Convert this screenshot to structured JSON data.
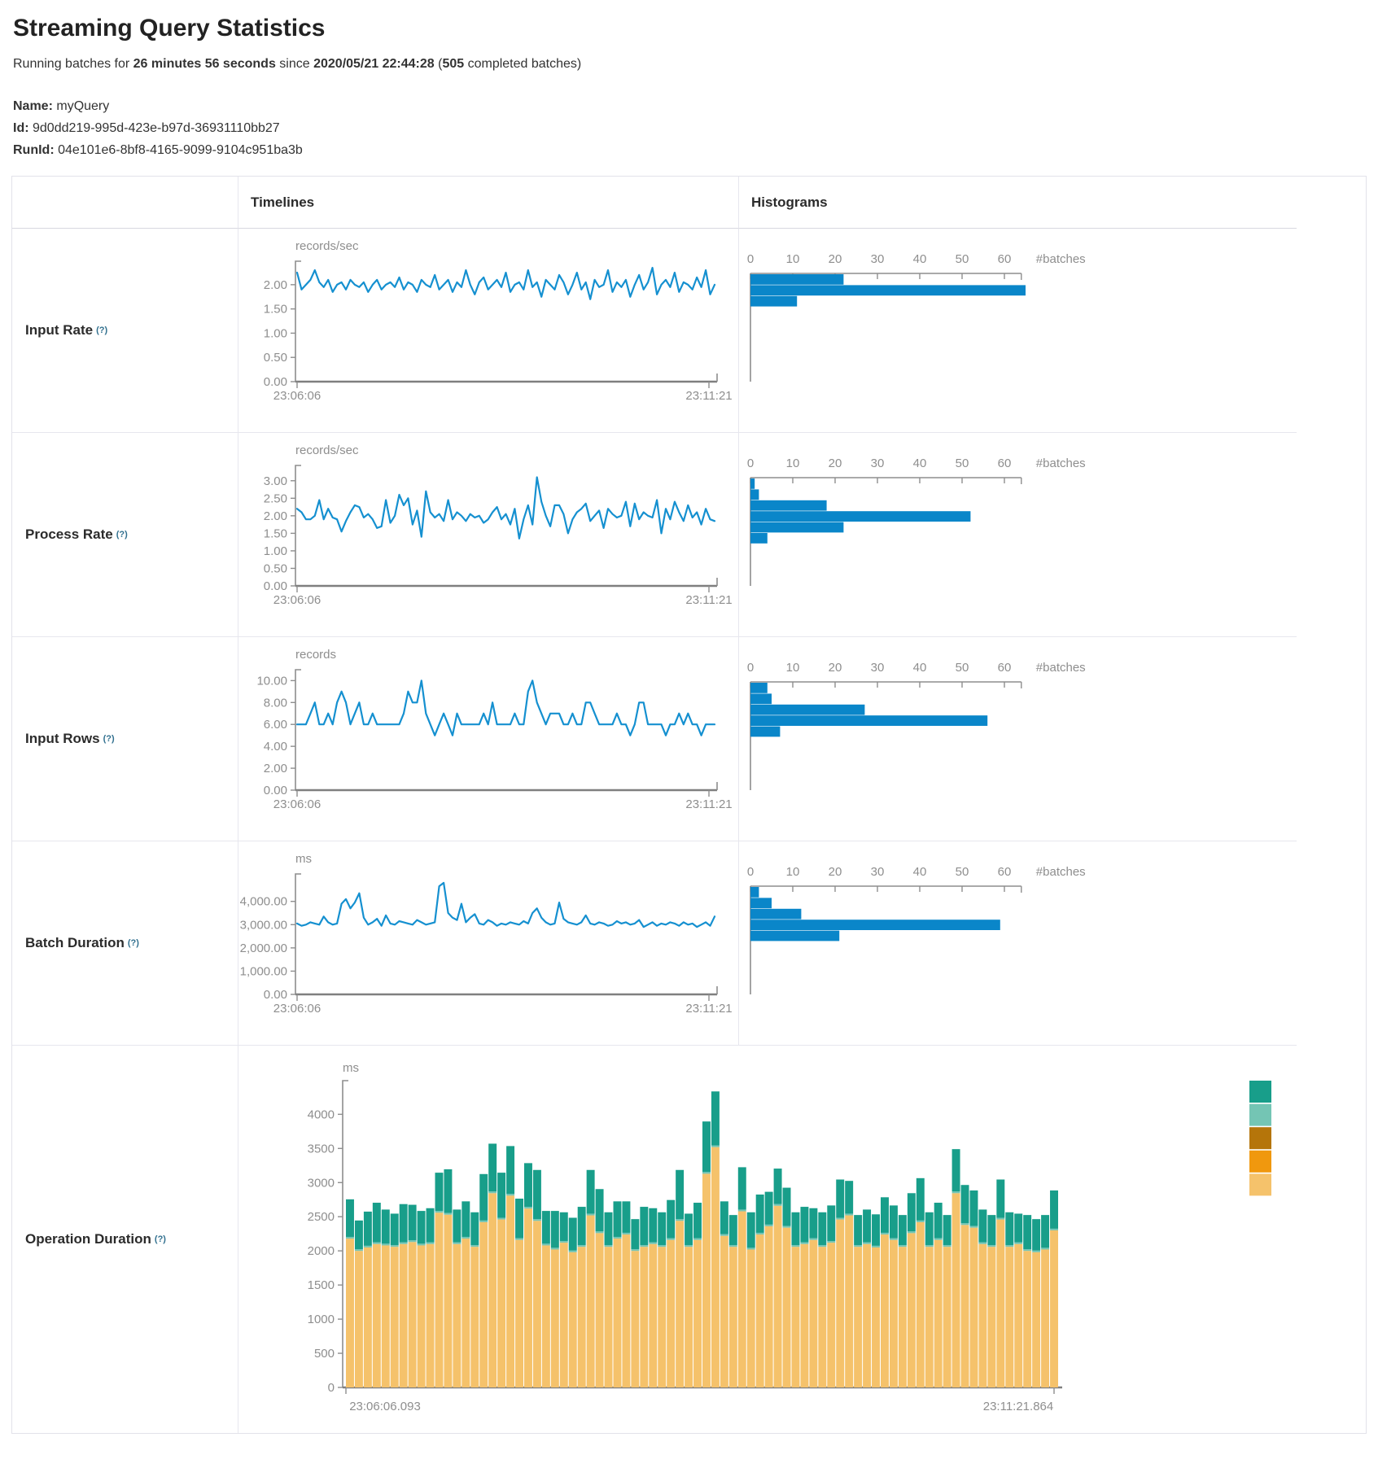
{
  "page": {
    "title": "Streaming Query Statistics",
    "subtitle": {
      "prefix": "Running batches for ",
      "duration": "26 minutes 56 seconds",
      "mid": " since ",
      "start_time": "2020/05/21 22:44:28",
      "paren_open": " (",
      "batches": "505",
      "suffix": " completed batches)"
    },
    "meta": [
      {
        "label": "Name:",
        "value": "myQuery"
      },
      {
        "label": "Id:",
        "value": "9d0dd219-995d-423e-b97d-36931110bb27"
      },
      {
        "label": "RunId:",
        "value": "04e101e6-8bf8-4165-9099-9104c951ba3b"
      }
    ]
  },
  "table": {
    "headers": {
      "timelines": "Timelines",
      "histograms": "Histograms"
    }
  },
  "colors": {
    "line_blue": "#1590d0",
    "hist_blue": "#0a86c9",
    "axis_gray": "#8e8e8e",
    "baseline_gray": "#7f7f7f",
    "stack_tan": "#F5C26B",
    "stack_mid_teal": "#74C5B4",
    "stack_green": "#189E8A",
    "legend_dark_gold": "#B5750A",
    "legend_orange": "#F0980E"
  },
  "chart_data": [
    {
      "label": "Input Rate",
      "help": "(?)",
      "timeline": {
        "type": "line",
        "unit": "records/sec",
        "x_start": "23:06:06",
        "x_end": "23:11:21",
        "ylim": [
          0,
          2.35
        ],
        "yticks": [
          0,
          0.5,
          1,
          1.5,
          2
        ],
        "tick_format": "fixed2",
        "values": [
          2.25,
          1.9,
          2.0,
          2.1,
          2.3,
          2.05,
          1.95,
          2.1,
          1.85,
          2.0,
          2.05,
          1.9,
          2.1,
          2.0,
          1.95,
          2.05,
          1.85,
          2.0,
          2.1,
          1.9,
          2.0,
          2.05,
          1.95,
          2.15,
          1.9,
          2.05,
          2.0,
          1.85,
          2.1,
          2.0,
          1.95,
          2.2,
          1.9,
          2.0,
          2.1,
          1.85,
          2.05,
          1.95,
          2.3,
          2.0,
          1.8,
          2.05,
          2.15,
          1.9,
          2.0,
          2.1,
          1.95,
          2.25,
          1.85,
          2.0,
          2.05,
          1.9,
          2.3,
          1.95,
          2.05,
          1.75,
          2.1,
          2.0,
          1.9,
          2.2,
          2.05,
          1.8,
          2.0,
          2.25,
          1.9,
          2.05,
          1.7,
          2.1,
          1.95,
          2.0,
          2.3,
          1.85,
          2.05,
          1.95,
          2.1,
          1.75,
          2.0,
          2.2,
          1.9,
          2.05,
          2.35,
          1.8,
          2.0,
          2.1,
          1.95,
          2.25,
          1.85,
          2.05,
          2.0,
          1.9,
          2.15,
          1.95,
          2.3,
          1.8,
          2.0
        ]
      },
      "histogram": {
        "type": "bar",
        "xlabel": "#batches",
        "xticks": [
          0,
          10,
          20,
          30,
          40,
          50,
          60
        ],
        "values": [
          22,
          65,
          11
        ]
      }
    },
    {
      "label": "Process Rate",
      "help": "(?)",
      "timeline": {
        "type": "line",
        "unit": "records/sec",
        "x_start": "23:06:06",
        "x_end": "23:11:21",
        "ylim": [
          0,
          3.25
        ],
        "yticks": [
          0,
          0.5,
          1,
          1.5,
          2,
          2.5,
          3
        ],
        "tick_format": "fixed2",
        "values": [
          2.2,
          2.1,
          1.9,
          1.9,
          2.0,
          2.45,
          1.9,
          2.2,
          1.95,
          1.9,
          1.55,
          1.85,
          2.1,
          2.3,
          2.25,
          1.95,
          2.05,
          1.9,
          1.65,
          1.7,
          2.45,
          1.8,
          2.0,
          2.6,
          2.3,
          2.5,
          1.75,
          2.15,
          1.4,
          2.7,
          2.1,
          1.95,
          2.05,
          1.85,
          2.45,
          1.9,
          2.1,
          2.0,
          1.85,
          2.05,
          1.95,
          2.0,
          1.8,
          1.9,
          2.1,
          2.25,
          1.9,
          2.05,
          1.75,
          2.2,
          1.35,
          1.9,
          2.3,
          1.75,
          3.1,
          2.4,
          2.0,
          1.7,
          2.3,
          2.3,
          2.05,
          1.5,
          1.9,
          2.1,
          2.2,
          2.35,
          1.85,
          2.0,
          2.15,
          1.65,
          2.2,
          2.05,
          1.95,
          2.0,
          2.4,
          1.7,
          2.35,
          1.9,
          2.1,
          2.0,
          1.95,
          2.45,
          1.5,
          2.2,
          1.9,
          2.4,
          2.1,
          1.85,
          2.3,
          1.95,
          2.1,
          1.75,
          2.2,
          1.9,
          1.85
        ]
      },
      "histogram": {
        "type": "bar",
        "xlabel": "#batches",
        "xticks": [
          0,
          10,
          20,
          30,
          40,
          50,
          60
        ],
        "values": [
          1,
          2,
          18,
          52,
          22,
          4
        ]
      }
    },
    {
      "label": "Input Rows",
      "help": "(?)",
      "timeline": {
        "type": "line",
        "unit": "records",
        "x_start": "23:06:06",
        "x_end": "23:11:21",
        "ylim": [
          0,
          10.4
        ],
        "yticks": [
          0,
          2,
          4,
          6,
          8,
          10
        ],
        "tick_format": "fixed2",
        "values": [
          6,
          6,
          6,
          7,
          8,
          6,
          6,
          7,
          6,
          8,
          9,
          8,
          6,
          7,
          8,
          6,
          6,
          7,
          6,
          6,
          6,
          6,
          6,
          6,
          7,
          9,
          8,
          8,
          10,
          7,
          6,
          5,
          6,
          7,
          6,
          5,
          7,
          6,
          6,
          6,
          6,
          6,
          7,
          6,
          8,
          6,
          6,
          6,
          6,
          7,
          6,
          6,
          9,
          10,
          8,
          7,
          6,
          7,
          7,
          7,
          6,
          6,
          7,
          6,
          6,
          8,
          8,
          7,
          6,
          6,
          6,
          6,
          7,
          6,
          6,
          5,
          6,
          8,
          8,
          6,
          6,
          6,
          6,
          5,
          6,
          6,
          7,
          6,
          7,
          6,
          6,
          5,
          6,
          6,
          6
        ]
      },
      "histogram": {
        "type": "bar",
        "xlabel": "#batches",
        "xticks": [
          0,
          10,
          20,
          30,
          40,
          50,
          60
        ],
        "values": [
          4,
          5,
          27,
          56,
          7
        ]
      }
    },
    {
      "label": "Batch Duration",
      "help": "(?)",
      "timeline": {
        "type": "line",
        "unit": "ms",
        "x_start": "23:06:06",
        "x_end": "23:11:21",
        "ylim": [
          0,
          4900
        ],
        "yticks": [
          0,
          1000,
          2000,
          3000,
          4000
        ],
        "tick_format": "comma2",
        "values": [
          3050,
          2950,
          3000,
          3100,
          3050,
          3000,
          3350,
          3100,
          3000,
          3050,
          3900,
          4100,
          3700,
          3950,
          4350,
          3300,
          3000,
          3100,
          3250,
          2950,
          3400,
          3050,
          3000,
          3150,
          3100,
          3050,
          3000,
          3200,
          3100,
          3000,
          3050,
          3100,
          4650,
          4800,
          3500,
          3300,
          3200,
          3900,
          3100,
          3300,
          3450,
          3050,
          3000,
          3200,
          3100,
          2950,
          3050,
          3000,
          3100,
          3050,
          3000,
          3150,
          3050,
          3500,
          3700,
          3300,
          3100,
          3000,
          3050,
          3950,
          3250,
          3100,
          3050,
          3000,
          3100,
          3400,
          3050,
          3000,
          3100,
          3050,
          2950,
          3000,
          3150,
          3050,
          3100,
          3000,
          3050,
          3200,
          2900,
          3000,
          3100,
          2950,
          3050,
          3000,
          3100,
          3050,
          2950,
          3100,
          3000,
          3050,
          2900,
          3000,
          3100,
          2950,
          3350
        ]
      },
      "histogram": {
        "type": "bar",
        "xlabel": "#batches",
        "xticks": [
          0,
          10,
          20,
          30,
          40,
          50,
          60
        ],
        "values": [
          2,
          5,
          12,
          59,
          21
        ]
      }
    },
    {
      "label": "Operation Duration",
      "help": "(?)",
      "stacked": {
        "type": "bar",
        "unit": "ms",
        "x_start": "23:06:06.093",
        "x_end": "23:11:21.864",
        "ylim": [
          0,
          4350
        ],
        "yticks": [
          0,
          500,
          1000,
          1500,
          2000,
          2500,
          3000,
          3500,
          4000
        ],
        "tick_format": "int",
        "legend_colors": [
          "#189E8A",
          "#74C5B4",
          "#B5750A",
          "#F0980E",
          "#F5C26B"
        ],
        "series": [
          {
            "name": "base-tan",
            "color": "#F5C26B",
            "values": [
              2180,
              2000,
              2050,
              2100,
              2080,
              2060,
              2100,
              2130,
              2080,
              2100,
              2560,
              2530,
              2100,
              2180,
              2060,
              2420,
              2845,
              2460,
              2810,
              2160,
              2620,
              2440,
              2080,
              2020,
              2120,
              1980,
              2060,
              2520,
              2260,
              2060,
              2180,
              2240,
              2000,
              2060,
              2100,
              2060,
              2160,
              2440,
              2060,
              2160,
              3130,
              3520,
              2220,
              2060,
              2580,
              2020,
              2240,
              2360,
              2660,
              2340,
              2060,
              2100,
              2160,
              2060,
              2120,
              2460,
              2520,
              2060,
              2100,
              2050,
              2240,
              2160,
              2060,
              2260,
              2420,
              2060,
              2160,
              2060,
              2845,
              2380,
              2340,
              2100,
              2060,
              2460,
              2060,
              2100,
              2000,
              1980,
              2020,
              2300
            ]
          },
          {
            "name": "mid-teal",
            "color": "#74C5B4",
            "const": 25
          },
          {
            "name": "top-green",
            "color": "#189E8A",
            "values": [
              550,
              420,
              500,
              580,
              500,
              460,
              560,
              520,
              480,
              500,
              560,
              640,
              480,
              520,
              480,
              680,
              700,
              660,
              700,
              580,
              640,
              720,
              480,
              540,
              420,
              480,
              560,
              640,
              620,
              480,
              520,
              460,
              440,
              560,
              500,
              480,
              560,
              720,
              460,
              520,
              740,
              790,
              480,
              440,
              620,
              520,
              560,
              480,
              520,
              560,
              480,
              520,
              440,
              480,
              520,
              560,
              480,
              440,
              480,
              460,
              520,
              480,
              440,
              560,
              620,
              480,
              520,
              440,
              620,
              560,
              520,
              480,
              440,
              560,
              480,
              420,
              500,
              460,
              480,
              560
            ]
          }
        ]
      }
    }
  ]
}
